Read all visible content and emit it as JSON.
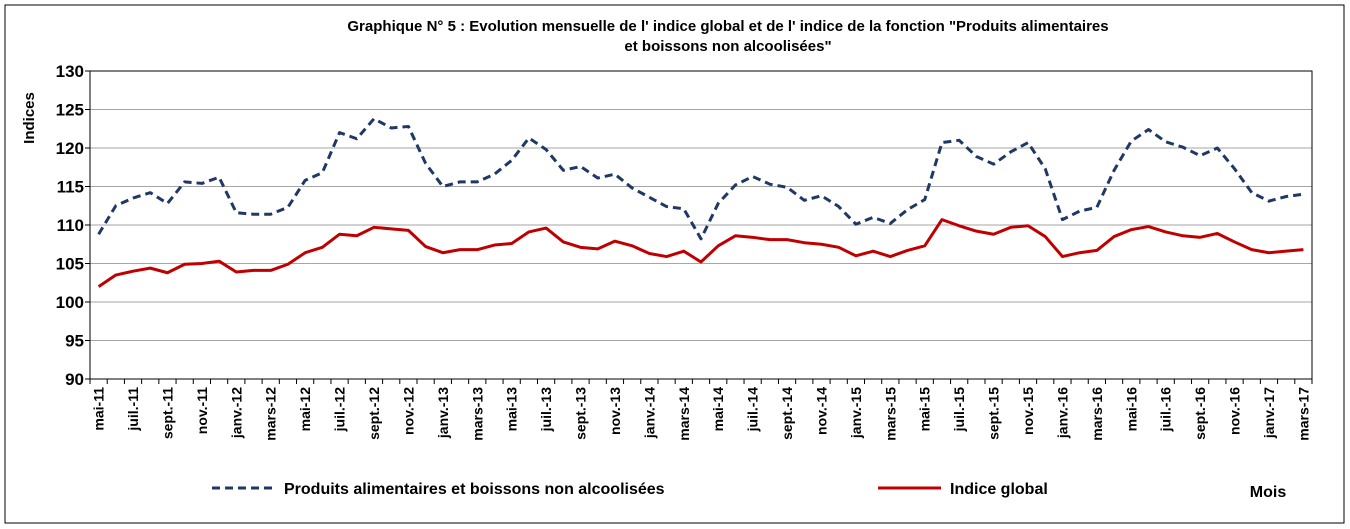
{
  "chart_data": {
    "type": "line",
    "title": [
      "Graphique N° 5 : Evolution mensuelle de l' indice global  et de l' indice de la fonction \"Produits alimentaires",
      "et boissons  non alcoolisées\""
    ],
    "y_label": "Indices",
    "x_label": "Mois",
    "categories": [
      "mai-11",
      null,
      "juil.-11",
      null,
      "sept.-11",
      null,
      "nov.-11",
      null,
      "janv.-12",
      null,
      "mars-12",
      null,
      "mai-12",
      null,
      "juil.-12",
      null,
      "sept.-12",
      null,
      "nov.-12",
      null,
      "janv.-13",
      null,
      "mars-13",
      null,
      "mai-13",
      null,
      "juil.-13",
      null,
      "sept.-13",
      null,
      "nov.-13",
      null,
      "janv.-14",
      null,
      "mars-14",
      null,
      "mai-14",
      null,
      "juil.-14",
      null,
      "sept.-14",
      null,
      "nov.-14",
      null,
      "janv.-15",
      null,
      "mars-15",
      null,
      "mai-15",
      null,
      "juil.-15",
      null,
      "sept.-15",
      null,
      "nov.-15",
      null,
      "janv.-16",
      null,
      "mars-16",
      null,
      "mai-16",
      null,
      "juil.-16",
      null,
      "sept.-16",
      null,
      "nov.-16",
      null,
      "janv.-17",
      null,
      "mars-17"
    ],
    "series": [
      {
        "name": "Produits alimentaires et boissons non alcoolisées",
        "color": "#1f3864",
        "dash": true,
        "values": [
          108.8,
          112.5,
          113.5,
          114.2,
          112.8,
          115.6,
          115.4,
          116.2,
          111.6,
          111.4,
          111.4,
          112.3,
          115.8,
          116.8,
          122.0,
          121.2,
          123.8,
          122.6,
          122.8,
          118.0,
          115.0,
          115.6,
          115.6,
          116.6,
          118.4,
          121.3,
          119.8,
          117.1,
          117.6,
          116.1,
          116.6,
          114.8,
          113.6,
          112.4,
          112.1,
          108.2,
          112.8,
          115.2,
          116.3,
          115.3,
          114.9,
          113.2,
          113.8,
          112.4,
          110.1,
          111.0,
          110.2,
          112.0,
          113.3,
          120.7,
          121.0,
          118.9,
          117.9,
          119.5,
          120.7,
          117.3,
          110.7,
          111.8,
          112.3,
          117.1,
          120.9,
          122.4,
          120.8,
          120.1,
          119.0,
          120.0,
          117.3,
          114.2,
          113.1,
          113.7,
          114.0
        ]
      },
      {
        "name": "Indice global",
        "color": "#c00000",
        "dash": false,
        "values": [
          102.0,
          103.5,
          104.0,
          104.4,
          103.8,
          104.9,
          105.0,
          105.3,
          103.9,
          104.1,
          104.1,
          104.9,
          106.4,
          107.1,
          108.8,
          108.6,
          109.7,
          109.5,
          109.3,
          107.2,
          106.4,
          106.8,
          106.8,
          107.4,
          107.6,
          109.1,
          109.6,
          107.8,
          107.1,
          106.9,
          107.9,
          107.3,
          106.3,
          105.9,
          106.6,
          105.2,
          107.3,
          108.6,
          108.4,
          108.1,
          108.1,
          107.7,
          107.5,
          107.1,
          106.0,
          106.6,
          105.9,
          106.7,
          107.3,
          110.7,
          109.9,
          109.2,
          108.8,
          109.7,
          109.9,
          108.5,
          105.9,
          106.4,
          106.7,
          108.5,
          109.4,
          109.8,
          109.1,
          108.6,
          108.4,
          108.9,
          107.8,
          106.8,
          106.4,
          106.6,
          106.8
        ]
      }
    ],
    "ylim": [
      90,
      130
    ],
    "yticks": [
      90,
      95,
      100,
      105,
      110,
      115,
      120,
      125,
      130
    ],
    "grid": true,
    "legend": "bottom"
  }
}
